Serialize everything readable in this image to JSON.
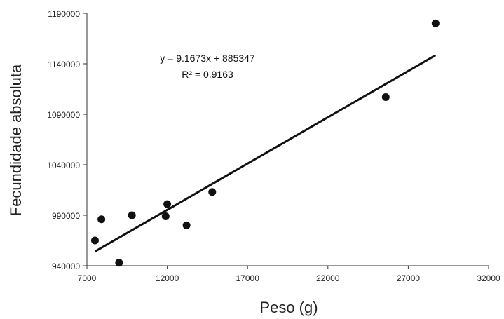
{
  "chart_data": {
    "type": "scatter",
    "title": "",
    "xlabel": "Peso (g)",
    "ylabel": "Fecundidade absoluta",
    "xlim": [
      7000,
      32000
    ],
    "ylim": [
      940000,
      1190000
    ],
    "x_ticks": [
      7000,
      12000,
      17000,
      22000,
      27000,
      32000
    ],
    "y_ticks": [
      940000,
      990000,
      1040000,
      1090000,
      1140000,
      1190000
    ],
    "x_tick_labels": [
      "7000",
      "12000",
      "17000",
      "22000",
      "27000",
      "32000"
    ],
    "y_tick_labels": [
      "940000",
      "990000",
      "1040000",
      "1090000",
      "1140000",
      "1190000"
    ],
    "grid": false,
    "legend": "none",
    "points": [
      {
        "x": 7500,
        "y": 965000
      },
      {
        "x": 7900,
        "y": 986000
      },
      {
        "x": 9000,
        "y": 943000
      },
      {
        "x": 9800,
        "y": 990000
      },
      {
        "x": 11900,
        "y": 989000
      },
      {
        "x": 12000,
        "y": 1001000
      },
      {
        "x": 13200,
        "y": 980000
      },
      {
        "x": 14800,
        "y": 1013000
      },
      {
        "x": 25600,
        "y": 1107000
      },
      {
        "x": 28700,
        "y": 1180000
      }
    ],
    "trendline": {
      "slope": 9.1673,
      "intercept": 885347,
      "x_range": [
        7500,
        28700
      ],
      "equation": "y = 9.1673x + 885347",
      "r_squared": "R² = 0.9163"
    },
    "colors": {
      "points": "#111111",
      "trendline": "#111111",
      "axes": "#333333"
    }
  }
}
